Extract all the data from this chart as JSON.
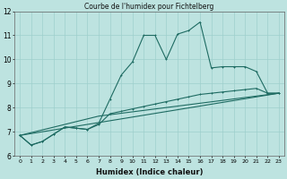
{
  "title": "Courbe de l'humidex pour Fichtelberg",
  "xlabel": "Humidex (Indice chaleur)",
  "xlim": [
    -0.5,
    23.5
  ],
  "ylim": [
    6,
    12
  ],
  "yticks": [
    6,
    7,
    8,
    9,
    10,
    11,
    12
  ],
  "xticks": [
    0,
    1,
    2,
    3,
    4,
    5,
    6,
    7,
    8,
    9,
    10,
    11,
    12,
    13,
    14,
    15,
    16,
    17,
    18,
    19,
    20,
    21,
    22,
    23
  ],
  "bg_color": "#bde3e0",
  "grid_color": "#9ecfcc",
  "line_color": "#1e6b62",
  "line1_x": [
    0,
    1,
    2,
    3,
    4,
    5,
    6,
    7,
    8,
    9,
    10,
    11,
    12,
    13,
    14,
    15,
    16,
    17,
    18,
    19,
    20,
    21,
    22,
    23
  ],
  "line1_y": [
    6.85,
    6.45,
    6.6,
    6.9,
    7.2,
    7.15,
    7.1,
    7.35,
    8.35,
    9.35,
    9.9,
    11.0,
    11.0,
    10.0,
    11.05,
    11.2,
    11.55,
    9.65,
    9.7,
    9.7,
    9.7,
    9.5,
    8.6,
    8.6
  ],
  "line2_x": [
    0,
    1,
    2,
    3,
    4,
    5,
    6,
    7,
    8,
    9,
    10,
    11,
    12,
    13,
    14,
    15,
    16,
    17,
    18,
    19,
    20,
    21,
    22,
    23
  ],
  "line2_y": [
    6.85,
    6.45,
    6.6,
    6.9,
    7.2,
    7.15,
    7.1,
    7.3,
    7.75,
    7.85,
    7.95,
    8.05,
    8.15,
    8.25,
    8.35,
    8.45,
    8.55,
    8.6,
    8.65,
    8.7,
    8.75,
    8.8,
    8.6,
    8.6
  ],
  "line3_x": [
    0,
    7,
    23
  ],
  "line3_y": [
    6.85,
    7.65,
    8.6
  ],
  "line4_x": [
    0,
    23
  ],
  "line4_y": [
    6.85,
    8.6
  ]
}
